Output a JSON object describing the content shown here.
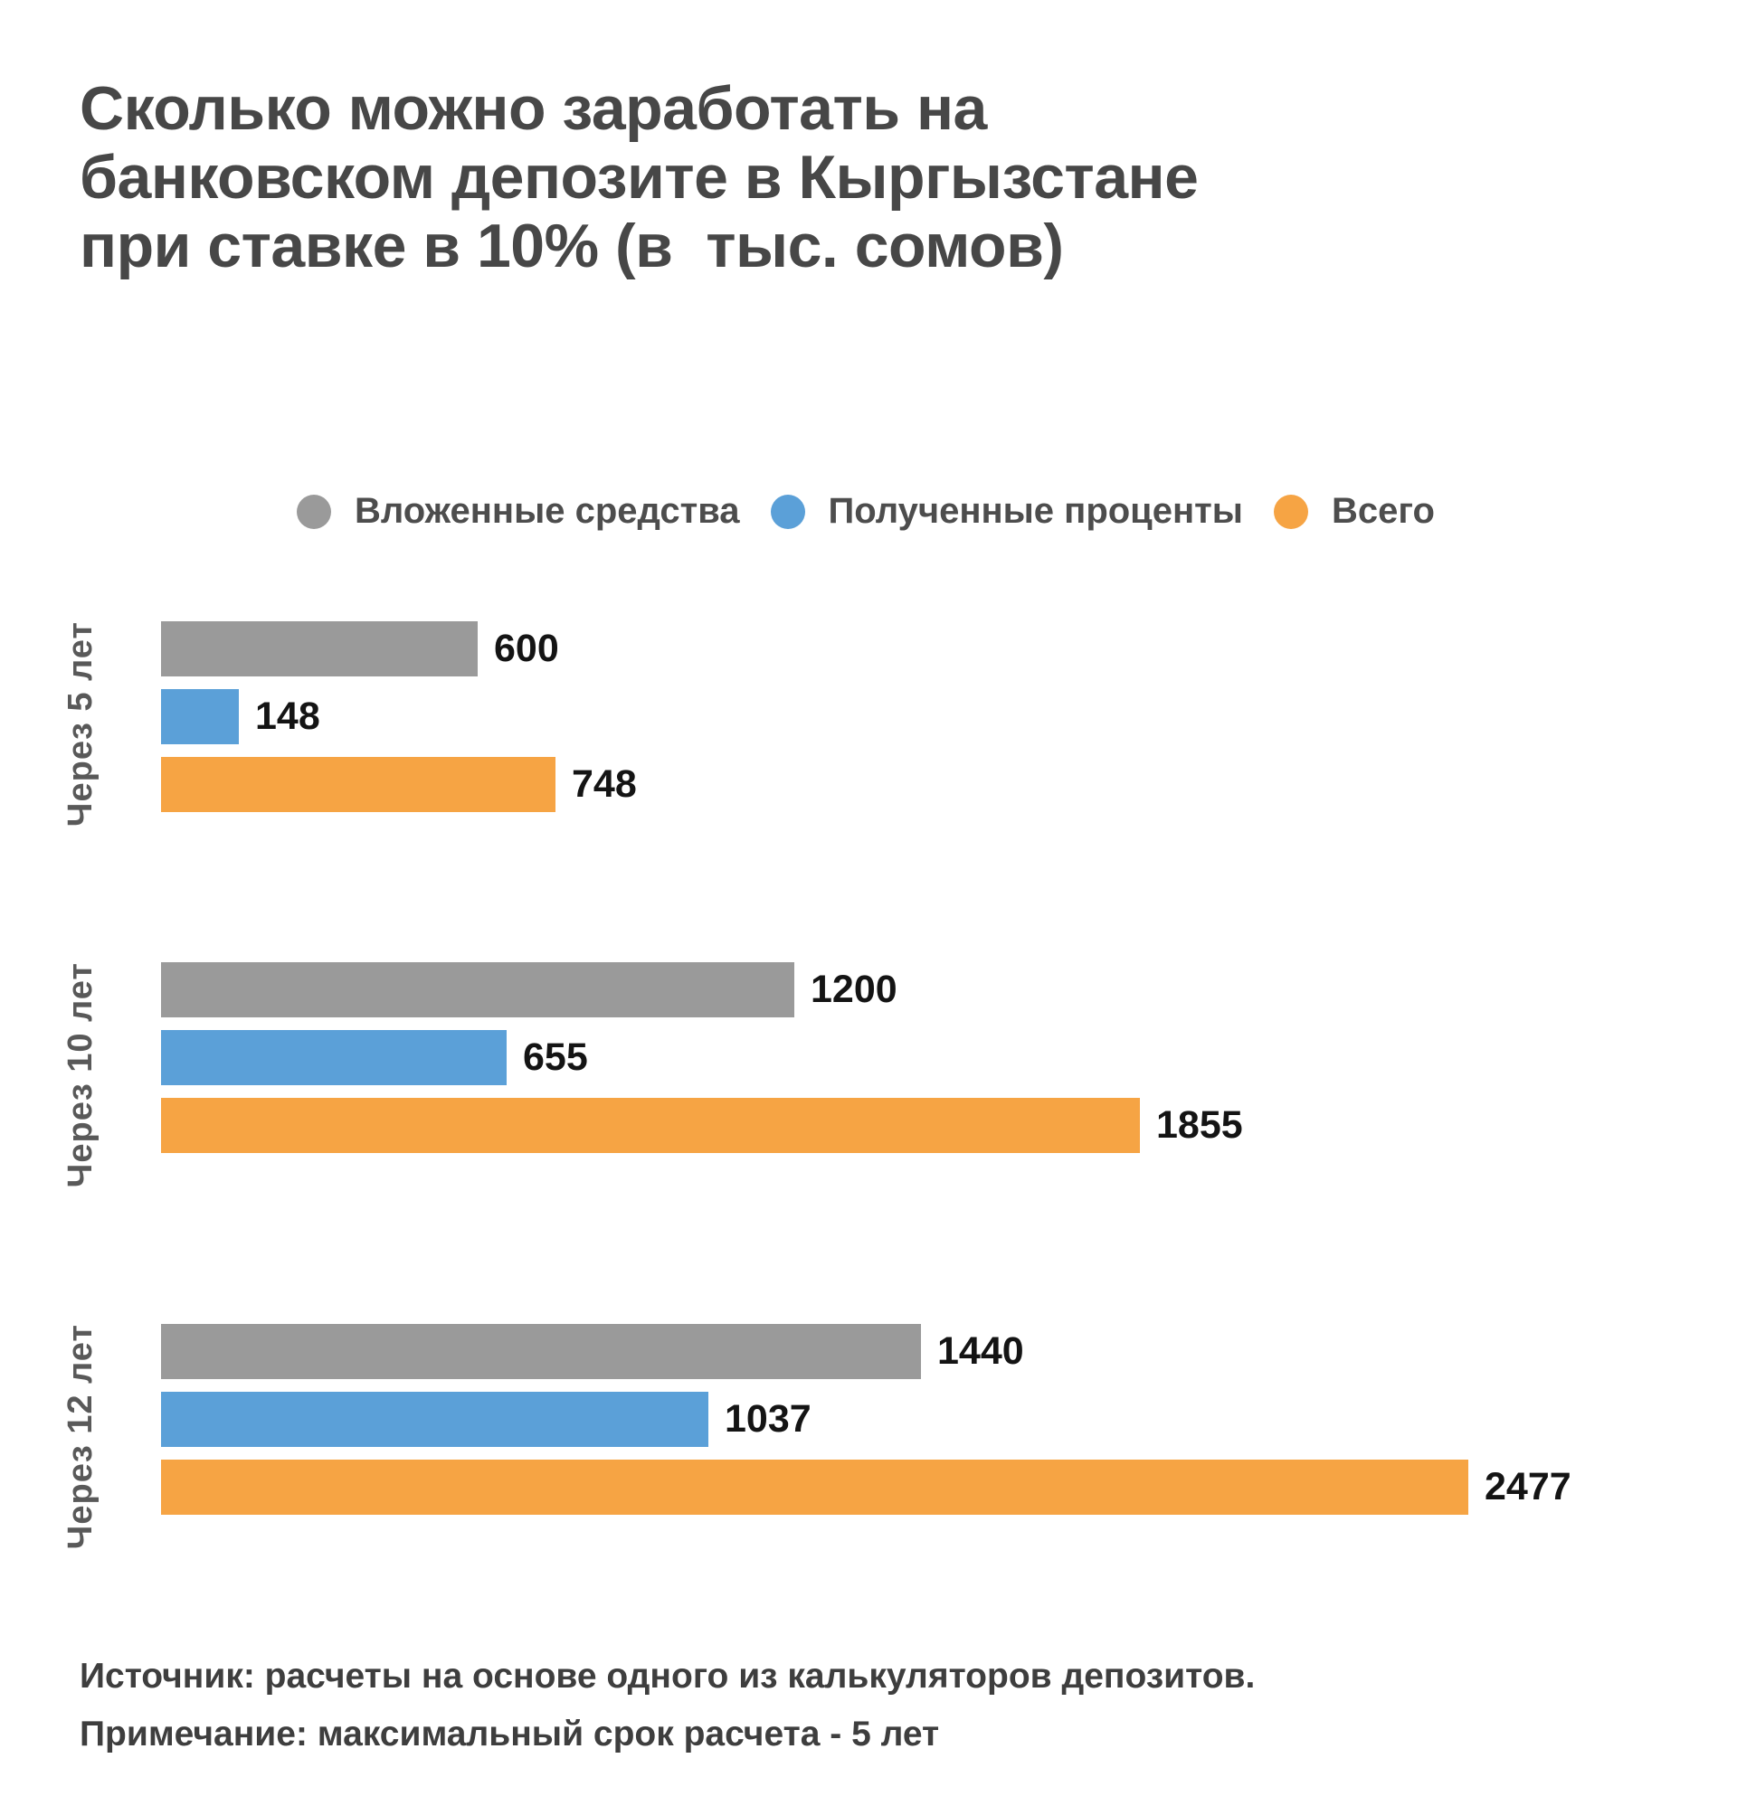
{
  "title_multiline": "Сколько можно заработать на\nбанковском депозите в Кыргызстане\nпри ставке в 10% (в  тыс. сомов)",
  "chart_data": {
    "type": "bar",
    "orientation": "horizontal",
    "title": "Сколько можно заработать на банковском депозите в Кыргызстане при ставке в 10% (в  тыс. сомов)",
    "categories": [
      "Через 5 лет",
      "Через 10 лет",
      "Через 12 лет"
    ],
    "series": [
      {
        "name": "Вложенные средства",
        "slug": "invested",
        "color": "#9a9a9a",
        "values": [
          600,
          1200,
          1440
        ]
      },
      {
        "name": "Полученные проценты",
        "slug": "interest",
        "color": "#5ba0d8",
        "values": [
          148,
          655,
          1037
        ]
      },
      {
        "name": "Всего",
        "slug": "total",
        "color": "#f6a444",
        "values": [
          748,
          1855,
          2477
        ]
      }
    ],
    "xlim": [
      0,
      2880
    ],
    "grid": false,
    "value_labels": true,
    "legend_position": "top"
  },
  "footer": {
    "source": "Источник: расчеты на основе одного из калькуляторов депозитов.",
    "note": "Примечание: максимальный срок расчета - 5 лет"
  }
}
